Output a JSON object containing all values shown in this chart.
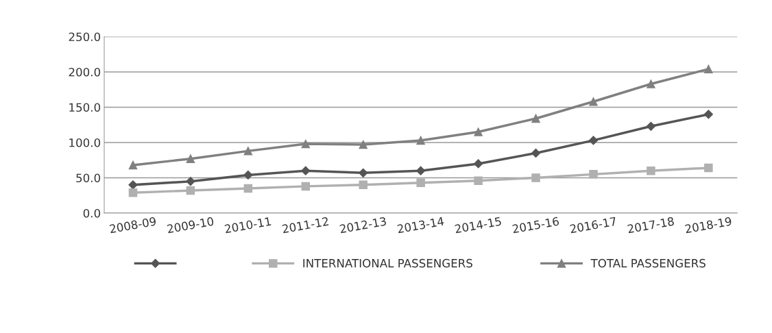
{
  "chart_data": {
    "type": "line",
    "categories": [
      "2008-09",
      "2009-10",
      "2010-11",
      "2011-12",
      "2012-13",
      "2013-14",
      "2014-15",
      "2015-16",
      "2016-17",
      "2017-18",
      "2018-19"
    ],
    "series": [
      {
        "color": "#555555",
        "marker": "diamond",
        "values": [
          40,
          45,
          54,
          60,
          57,
          60,
          70,
          85,
          103,
          123,
          140
        ]
      },
      {
        "name": "INTERNATIONAL PASSENGERS",
        "color": "#b0b0b0",
        "marker": "square",
        "values": [
          29,
          32,
          35,
          38,
          40,
          43,
          46,
          50,
          55,
          60,
          64
        ]
      },
      {
        "name": "TOTAL PASSENGERS",
        "color": "#808080",
        "marker": "triangle",
        "values": [
          68,
          77,
          88,
          98,
          97,
          103,
          115,
          134,
          158,
          183,
          204
        ]
      }
    ],
    "ylim": [
      0,
      250
    ],
    "yticks": [
      {
        "value": 0,
        "label": "0.0"
      },
      {
        "value": 50,
        "label": "50.0"
      },
      {
        "value": 100,
        "label": "100.0"
      },
      {
        "value": 150,
        "label": "150.0"
      },
      {
        "value": 200,
        "label": "200.0"
      },
      {
        "value": 250,
        "label": "250.0"
      }
    ],
    "grid": "y",
    "legend": "bottom",
    "line_style": "solid"
  }
}
